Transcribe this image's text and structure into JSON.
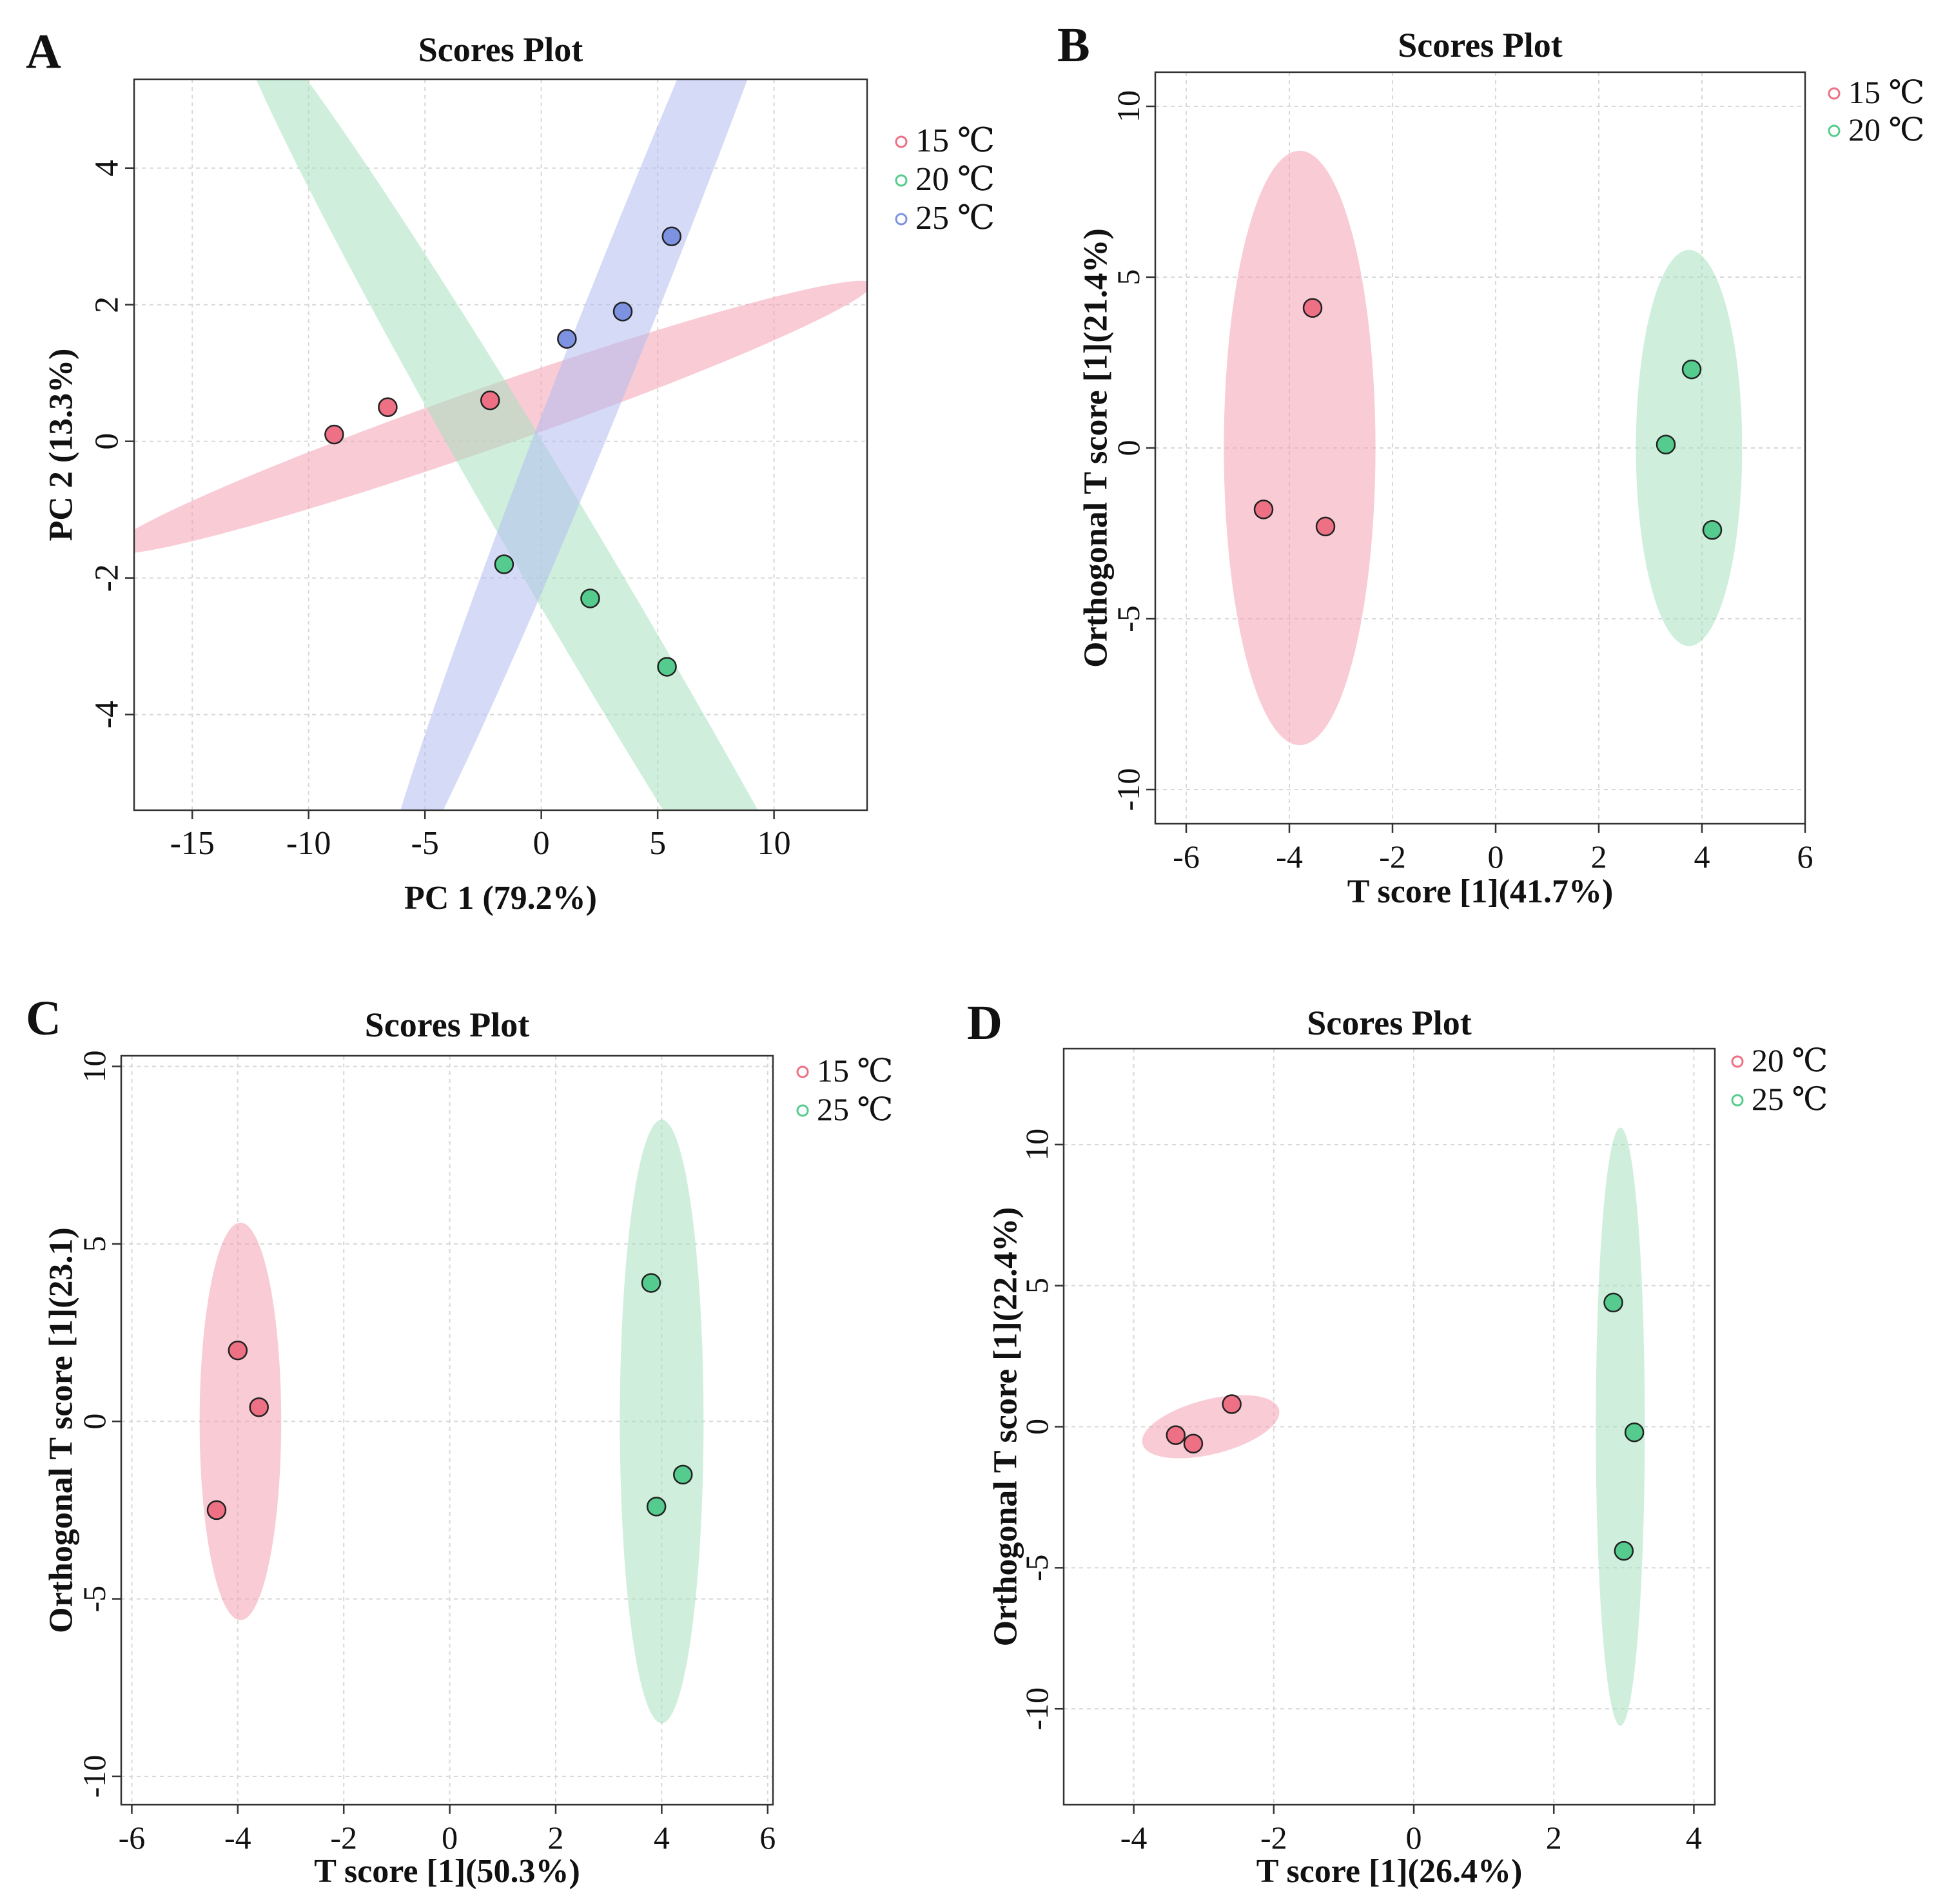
{
  "figure": {
    "panels": [
      "A",
      "B",
      "C",
      "D"
    ]
  },
  "colors": {
    "red": "#f4a0b2",
    "green": "#a8e2c0",
    "blue": "#b3bdf0",
    "red_dot": "#ee7085",
    "green_dot": "#55cc8e",
    "blue_dot": "#7d93e2"
  },
  "chart_data": [
    {
      "id": "A",
      "type": "scatter",
      "panel_label": "A",
      "title": "Scores Plot",
      "xlabel": "PC 1 (79.2%)",
      "ylabel": "PC 2 (13.3%)",
      "xlim": [
        -17.5,
        14.0
      ],
      "ylim": [
        -5.4,
        5.3
      ],
      "xticks": [
        -15,
        -10,
        -5,
        0,
        5,
        10
      ],
      "yticks": [
        -4,
        -2,
        0,
        2,
        4
      ],
      "xtick_labels": [
        "-15",
        "-10",
        "-5",
        "0",
        "5",
        "10"
      ],
      "ytick_labels": [
        "-4",
        "-2",
        "0",
        "2",
        "4"
      ],
      "legend": [
        "15 ℃",
        "20 ℃",
        "25 ℃"
      ],
      "series": [
        {
          "name": "15 ℃",
          "color": "red",
          "points": [
            [
              -8.9,
              0.1
            ],
            [
              -6.6,
              0.5
            ],
            [
              -2.2,
              0.6
            ]
          ],
          "ellipse": {
            "cx": -2.2,
            "cy": 0.35,
            "rx": 16.5,
            "ry": 0.45,
            "angle": 6.8
          }
        },
        {
          "name": "20 ℃",
          "color": "green",
          "points": [
            [
              -1.6,
              -1.8
            ],
            [
              2.1,
              -2.3
            ],
            [
              5.4,
              -3.3
            ]
          ],
          "ellipse": {
            "cx": 2.1,
            "cy": -2.4,
            "rx": 17.8,
            "ry": 0.72,
            "angle": -30.0
          }
        },
        {
          "name": "25 ℃",
          "color": "blue",
          "points": [
            [
              1.1,
              1.5
            ],
            [
              3.5,
              1.9
            ],
            [
              5.6,
              3.0
            ]
          ],
          "ellipse": {
            "cx": 3.5,
            "cy": 2.0,
            "rx": 13.8,
            "ry": 0.65,
            "angle": 40.5
          }
        }
      ]
    },
    {
      "id": "B",
      "type": "scatter",
      "panel_label": "B",
      "title": "Scores Plot",
      "xlabel": "T score [1](41.7%)",
      "ylabel": "Orthogonal T score [1](21.4%)",
      "xlim": [
        -6.6,
        6.0
      ],
      "ylim": [
        -11.0,
        11.0
      ],
      "xticks": [
        -6,
        -4,
        -2,
        0,
        2,
        4,
        6
      ],
      "yticks": [
        -10,
        -5,
        0,
        5,
        10
      ],
      "xtick_labels": [
        "-6",
        "-4",
        "-2",
        "0",
        "2",
        "4",
        "6"
      ],
      "ytick_labels": [
        "-10",
        "-5",
        "0",
        "5",
        "10"
      ],
      "legend": [
        "15 ℃",
        "20 ℃"
      ],
      "series": [
        {
          "name": "15 ℃",
          "color": "red",
          "points": [
            [
              -3.55,
              4.1
            ],
            [
              -4.5,
              -1.8
            ],
            [
              -3.3,
              -2.3
            ]
          ],
          "ellipse": {
            "cx": -3.8,
            "cy": 0.0,
            "rx": 1.47,
            "ry": 8.7,
            "angle": 0.0
          }
        },
        {
          "name": "20 ℃",
          "color": "green",
          "points": [
            [
              3.8,
              2.3
            ],
            [
              3.3,
              0.1
            ],
            [
              4.2,
              -2.4
            ]
          ],
          "ellipse": {
            "cx": 3.75,
            "cy": 0.0,
            "rx": 1.03,
            "ry": 5.8,
            "angle": 0.0
          }
        }
      ]
    },
    {
      "id": "C",
      "type": "scatter",
      "panel_label": "C",
      "title": "Scores Plot",
      "xlabel": "T score [1](50.3%)",
      "ylabel": "Orthogonal T score [1](23.1)",
      "xlim": [
        -6.2,
        6.1
      ],
      "ylim": [
        -10.8,
        10.3
      ],
      "xticks": [
        -6,
        -4,
        -2,
        0,
        2,
        4,
        6
      ],
      "yticks": [
        -10,
        -5,
        0,
        5,
        10
      ],
      "xtick_labels": [
        "-6",
        "-4",
        "-2",
        "0",
        "2",
        "4",
        "6"
      ],
      "ytick_labels": [
        "-10",
        "-5",
        "0",
        "5",
        "10"
      ],
      "legend": [
        "15 ℃",
        "25 ℃"
      ],
      "series": [
        {
          "name": "15 ℃",
          "color": "red",
          "points": [
            [
              -4.0,
              2.0
            ],
            [
              -3.6,
              0.4
            ],
            [
              -4.4,
              -2.5
            ]
          ],
          "ellipse": {
            "cx": -3.95,
            "cy": 0.0,
            "rx": 0.77,
            "ry": 5.6,
            "angle": 0.0
          }
        },
        {
          "name": "25 ℃",
          "color": "green",
          "points": [
            [
              3.8,
              3.9
            ],
            [
              4.4,
              -1.5
            ],
            [
              3.9,
              -2.4
            ]
          ],
          "ellipse": {
            "cx": 4.0,
            "cy": 0.0,
            "rx": 0.79,
            "ry": 8.5,
            "angle": 0.0
          }
        }
      ]
    },
    {
      "id": "D",
      "type": "scatter",
      "panel_label": "D",
      "title": "Scores Plot",
      "xlabel": "T score [1](26.4%)",
      "ylabel": "Orthogonal T score [1](22.4%)",
      "xlim": [
        -5.0,
        4.3
      ],
      "ylim": [
        -13.4,
        13.4
      ],
      "xticks": [
        -4,
        -2,
        0,
        2,
        4
      ],
      "yticks": [
        -10,
        -5,
        0,
        5,
        10
      ],
      "xtick_labels": [
        "-4",
        "-2",
        "0",
        "2",
        "4"
      ],
      "ytick_labels": [
        "-10",
        "-5",
        "0",
        "5",
        "10"
      ],
      "legend": [
        "20 ℃",
        "25 ℃"
      ],
      "series": [
        {
          "name": "20 ℃",
          "color": "red",
          "points": [
            [
              -3.4,
              -0.3
            ],
            [
              -3.15,
              -0.6
            ],
            [
              -2.6,
              0.8
            ]
          ],
          "ellipse": {
            "cx": -2.9,
            "cy": 0.0,
            "rx": 1.15,
            "ry": 0.62,
            "angle": 32.0
          }
        },
        {
          "name": "25 ℃",
          "color": "green",
          "points": [
            [
              2.85,
              4.4
            ],
            [
              3.15,
              -0.2
            ],
            [
              3.0,
              -4.4
            ]
          ],
          "ellipse": {
            "cx": 2.95,
            "cy": 0.0,
            "rx": 0.35,
            "ry": 10.6,
            "angle": 0.0
          }
        }
      ]
    }
  ]
}
